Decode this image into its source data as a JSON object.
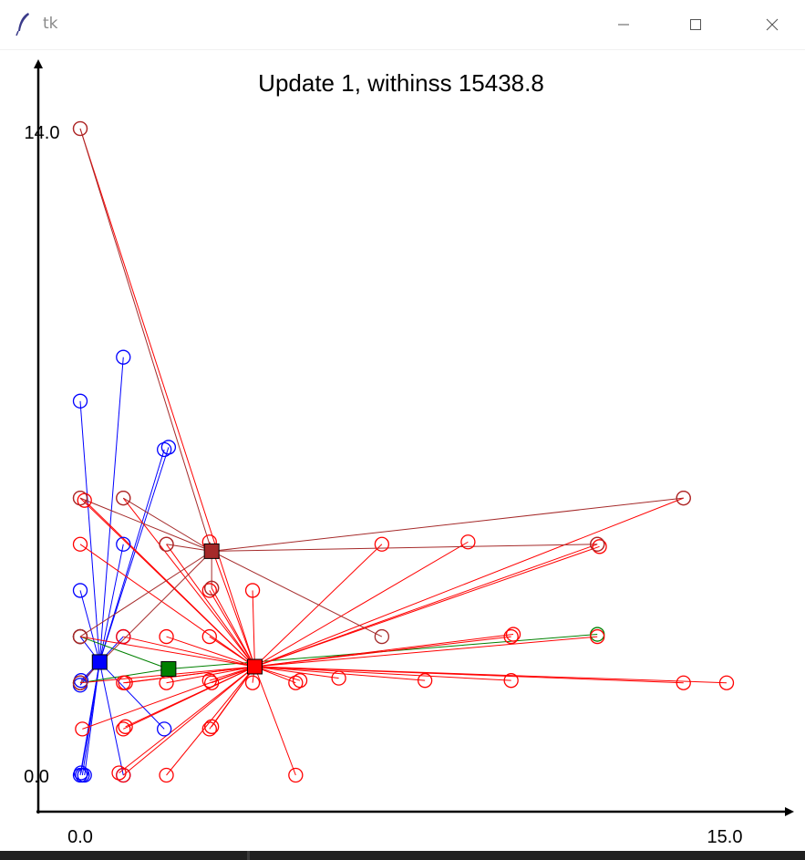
{
  "window": {
    "title": "tk",
    "minimize_glyph": "—",
    "maximize_glyph": "☐",
    "close_glyph": "✕"
  },
  "taskbar": {
    "ghost_text": ""
  },
  "chart_data": {
    "type": "scatter",
    "title": "Update 1, withinss 15438.8",
    "xlabel": "",
    "ylabel": "",
    "xlim": [
      0,
      15
    ],
    "ylim": [
      0,
      14
    ],
    "x_tick_labels": [
      "0.0",
      "15.0"
    ],
    "y_tick_labels": [
      "0.0",
      "14.0"
    ],
    "grid": false,
    "colors": {
      "blue": "#0000ff",
      "green": "#008000",
      "red": "#ff0000",
      "brown": "#a52a2a"
    },
    "centroids": [
      {
        "name": "blue",
        "x": 0.45,
        "y": 2.45
      },
      {
        "name": "green",
        "x": 2.05,
        "y": 2.3
      },
      {
        "name": "red",
        "x": 4.05,
        "y": 2.35
      },
      {
        "name": "brown",
        "x": 3.05,
        "y": 4.85
      }
    ],
    "series": [
      {
        "name": "blue",
        "points": [
          [
            0.0,
            0.0
          ],
          [
            0.05,
            0.0
          ],
          [
            0.1,
            0.0
          ],
          [
            0.02,
            0.05
          ],
          [
            0.0,
            1.95
          ],
          [
            0.02,
            2.05
          ],
          [
            0.0,
            3.0
          ],
          [
            0.0,
            4.0
          ],
          [
            0.0,
            8.1
          ],
          [
            1.0,
            9.05
          ],
          [
            1.95,
            7.05
          ],
          [
            2.05,
            7.1
          ],
          [
            1.0,
            5.0
          ],
          [
            1.0,
            3.0
          ],
          [
            1.95,
            1.0
          ],
          [
            1.0,
            0.0
          ]
        ]
      },
      {
        "name": "green",
        "points": [
          [
            0.0,
            2.0
          ],
          [
            0.0,
            3.0
          ],
          [
            12.0,
            3.05
          ]
        ]
      },
      {
        "name": "red",
        "points": [
          [
            0.0,
            14.0
          ],
          [
            0.0,
            6.0
          ],
          [
            0.1,
            5.95
          ],
          [
            1.0,
            6.0
          ],
          [
            0.0,
            5.0
          ],
          [
            2.0,
            5.0
          ],
          [
            3.0,
            5.05
          ],
          [
            3.0,
            4.0
          ],
          [
            3.05,
            4.05
          ],
          [
            4.0,
            4.0
          ],
          [
            7.0,
            5.0
          ],
          [
            9.0,
            5.05
          ],
          [
            12.0,
            5.0
          ],
          [
            12.05,
            4.95
          ],
          [
            14.0,
            6.0
          ],
          [
            0.0,
            3.0
          ],
          [
            1.0,
            3.0
          ],
          [
            2.0,
            3.0
          ],
          [
            3.0,
            3.0
          ],
          [
            3.0,
            2.05
          ],
          [
            3.05,
            2.0
          ],
          [
            4.0,
            2.0
          ],
          [
            5.0,
            2.0
          ],
          [
            5.1,
            2.05
          ],
          [
            6.0,
            2.1
          ],
          [
            8.0,
            2.05
          ],
          [
            10.0,
            2.05
          ],
          [
            12.0,
            3.0
          ],
          [
            10.0,
            3.0
          ],
          [
            10.05,
            3.05
          ],
          [
            14.0,
            2.0
          ],
          [
            15.0,
            2.0
          ],
          [
            0.0,
            2.0
          ],
          [
            1.0,
            2.0
          ],
          [
            1.05,
            2.0
          ],
          [
            2.0,
            2.0
          ],
          [
            0.05,
            1.0
          ],
          [
            1.0,
            1.0
          ],
          [
            1.05,
            1.05
          ],
          [
            3.0,
            1.0
          ],
          [
            3.05,
            1.05
          ],
          [
            1.0,
            0.0
          ],
          [
            0.9,
            0.05
          ],
          [
            2.0,
            0.0
          ],
          [
            5.0,
            0.0
          ]
        ]
      },
      {
        "name": "brown",
        "points": [
          [
            0.0,
            14.0
          ],
          [
            0.0,
            6.0
          ],
          [
            1.0,
            6.0
          ],
          [
            2.0,
            5.0
          ],
          [
            3.05,
            4.05
          ],
          [
            14.0,
            6.0
          ],
          [
            12.0,
            5.0
          ],
          [
            7.0,
            3.0
          ],
          [
            0.0,
            3.0
          ],
          [
            0.0,
            2.0
          ]
        ]
      }
    ]
  }
}
